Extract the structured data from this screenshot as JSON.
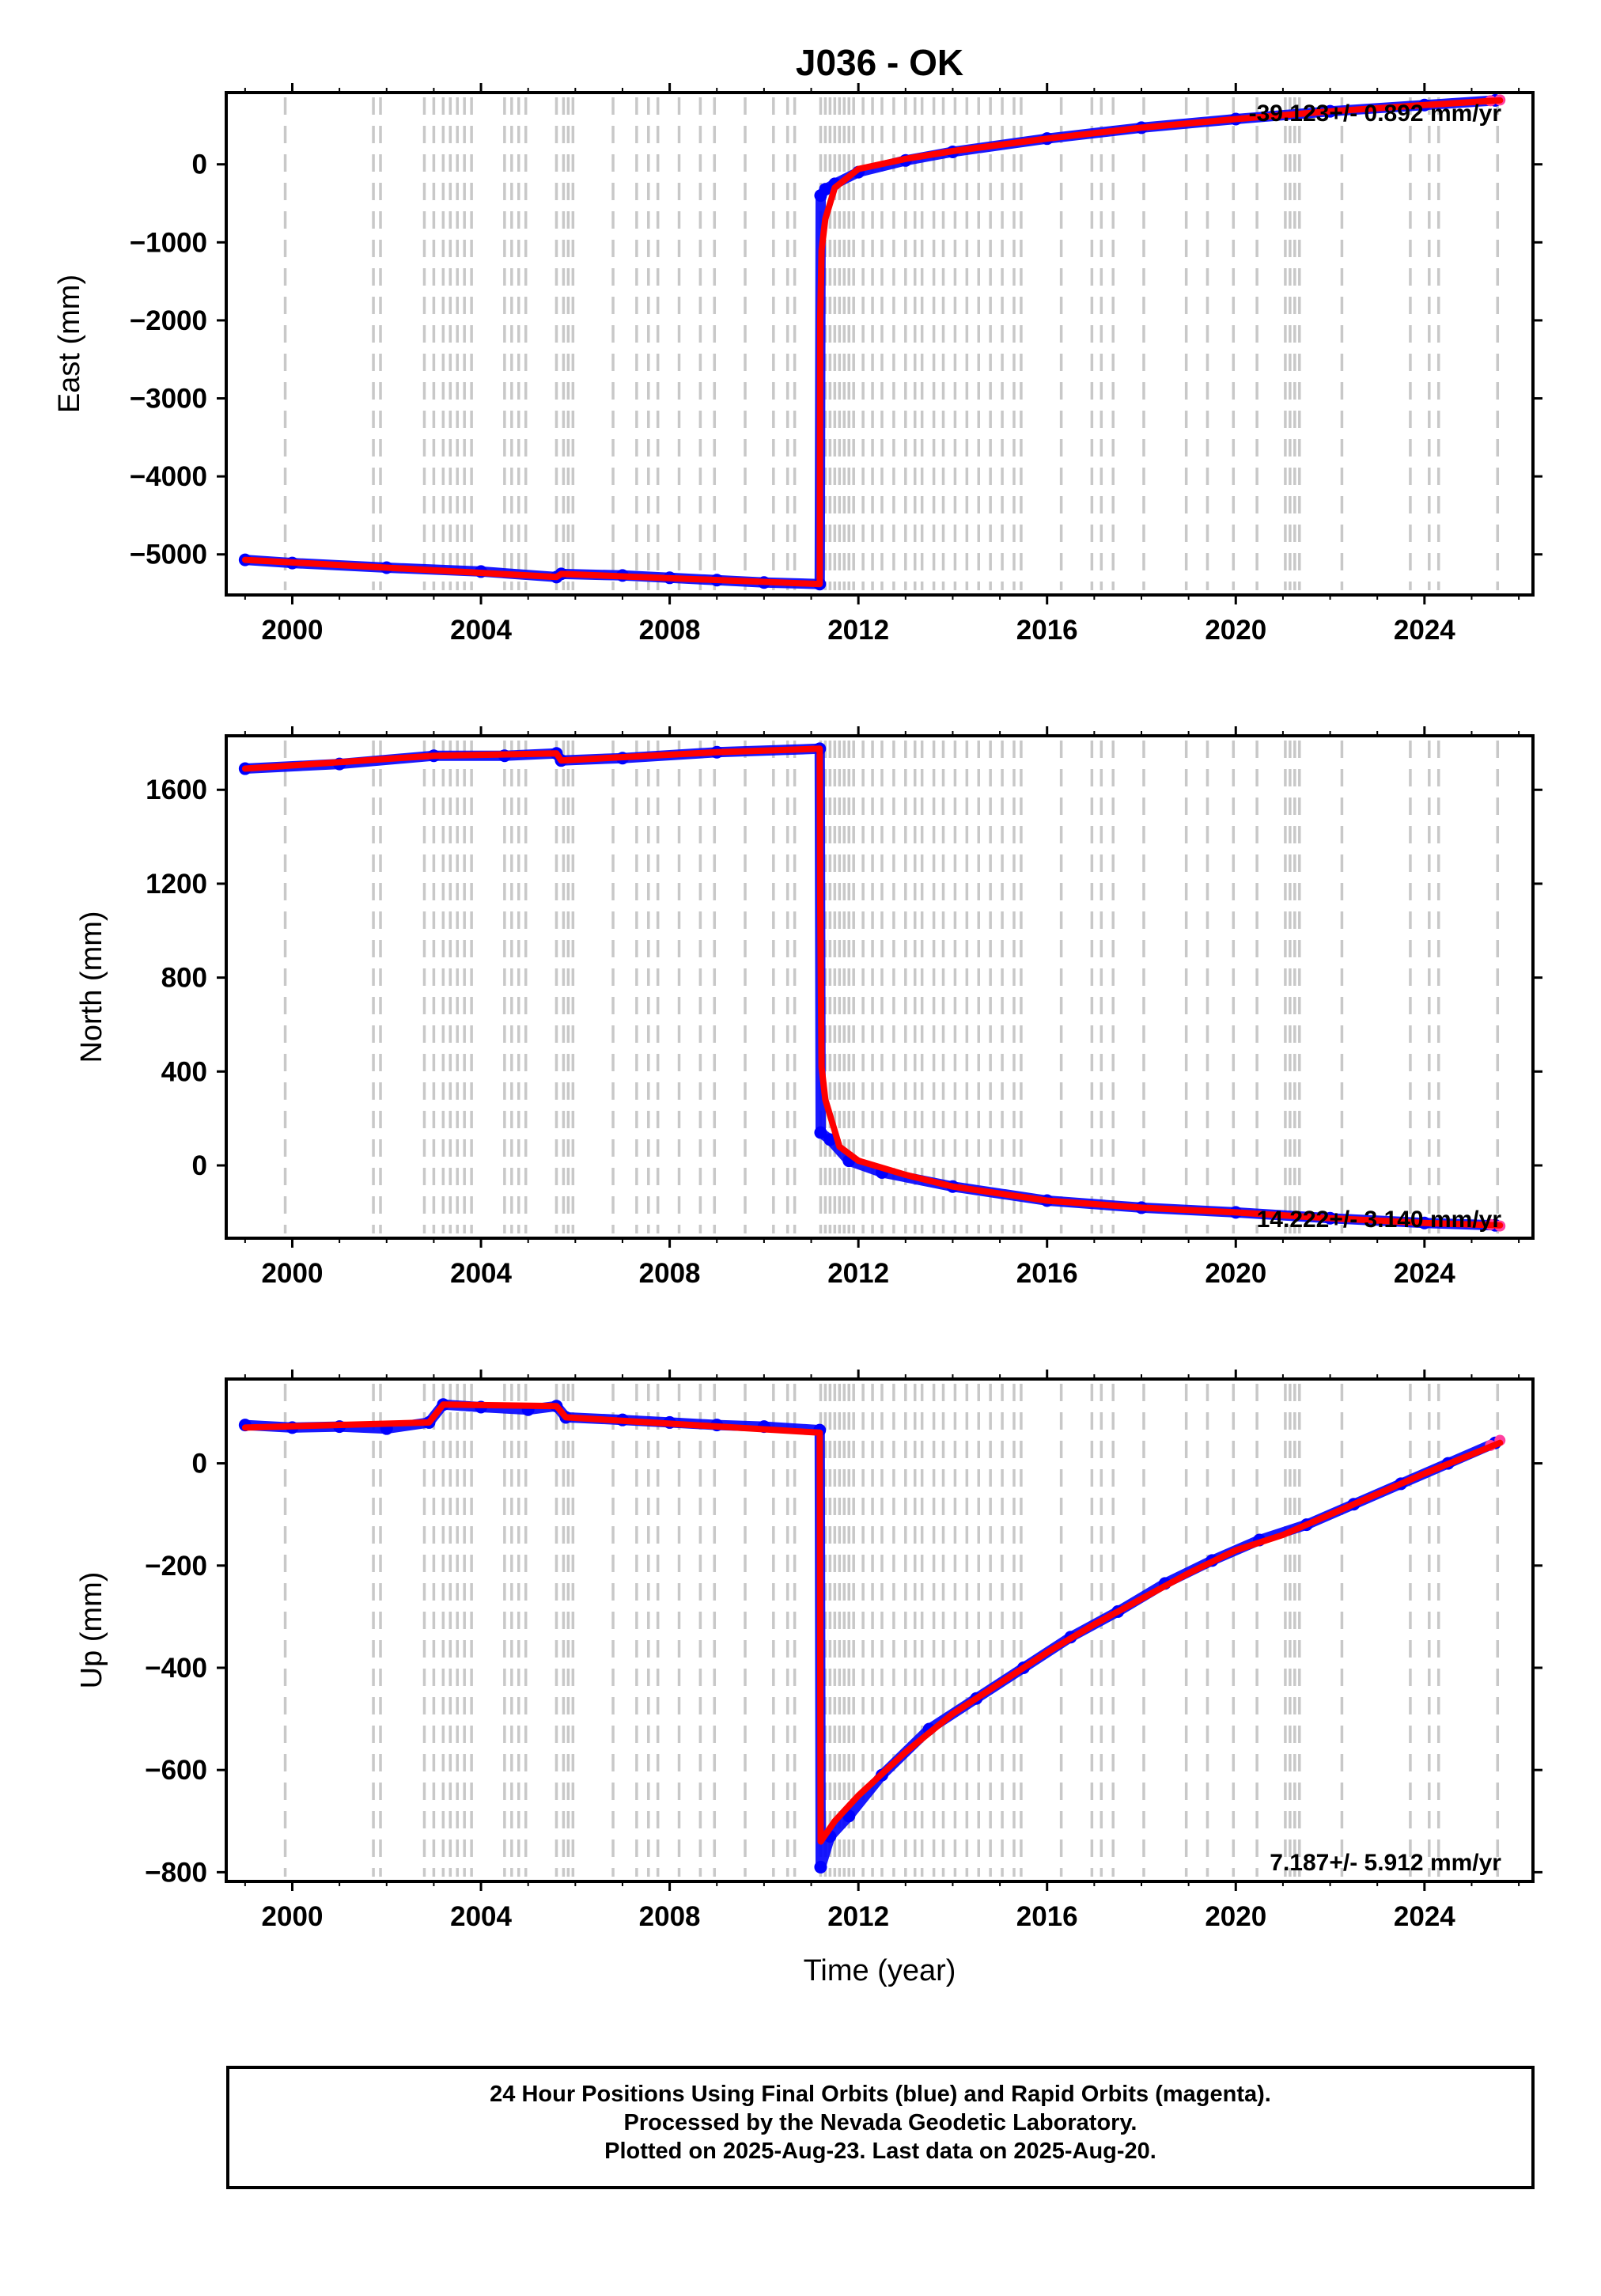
{
  "title": "J036 - OK",
  "xlabel": "Time (year)",
  "caption": [
    "24 Hour Positions Using Final Orbits (blue) and Rapid Orbits (magenta).",
    "Processed by the Nevada Geodetic Laboratory.",
    "Plotted on 2025-Aug-23. Last data on 2025-Aug-20."
  ],
  "colors": {
    "final_orbits": "#0000ff",
    "rapid_orbits": "#ff3fa0",
    "model": "#ff0000",
    "event_lines": "#c8c8c8"
  },
  "chart_data": [
    {
      "type": "scatter",
      "ylabel": "East (mm)",
      "xlim": [
        1998.6,
        2026.3
      ],
      "ylim": [
        -5520,
        920
      ],
      "xticks": [
        2000,
        2004,
        2008,
        2012,
        2016,
        2020,
        2024
      ],
      "yticks": [
        0,
        -1000,
        -2000,
        -3000,
        -4000,
        -5000
      ],
      "ytick_labels": [
        "0",
        "−1000",
        "−2000",
        "−3000",
        "−4000",
        "−5000"
      ],
      "rate_label": "-39.123+/- 0.892 mm/yr",
      "series": [
        {
          "name": "Final Orbits",
          "color": "#0000ff",
          "x": [
            1999.0,
            2000.0,
            2002.0,
            2004.0,
            2005.6,
            2005.7,
            2007.0,
            2008.0,
            2009.0,
            2010.0,
            2011.18,
            2011.2,
            2011.3,
            2011.5,
            2012.0,
            2013.0,
            2014.0,
            2016.0,
            2018.0,
            2020.0,
            2022.0,
            2024.0,
            2025.5
          ],
          "y": [
            -5070,
            -5110,
            -5170,
            -5220,
            -5290,
            -5250,
            -5270,
            -5300,
            -5330,
            -5360,
            -5380,
            -400,
            -320,
            -250,
            -100,
            50,
            160,
            330,
            470,
            580,
            680,
            760,
            820
          ]
        },
        {
          "name": "Rapid Orbits",
          "color": "#ff3fa0",
          "x": [
            2025.4,
            2025.6
          ],
          "y": [
            815,
            825
          ]
        },
        {
          "name": "Model",
          "color": "#ff0000",
          "x": [
            1999.0,
            2005.6,
            2005.7,
            2011.18,
            2011.19,
            2011.22,
            2011.3,
            2011.5,
            2012.0,
            2013.0,
            2014.0,
            2016.0,
            2018.0,
            2020.0,
            2022.0,
            2024.0,
            2025.6
          ],
          "y": [
            -5070,
            -5290,
            -5250,
            -5380,
            -2000,
            -1100,
            -700,
            -300,
            -60,
            70,
            170,
            330,
            470,
            580,
            680,
            760,
            820
          ]
        }
      ]
    },
    {
      "type": "scatter",
      "ylabel": "North (mm)",
      "xlim": [
        1998.6,
        2026.3
      ],
      "ylim": [
        -310,
        1830
      ],
      "xticks": [
        2000,
        2004,
        2008,
        2012,
        2016,
        2020,
        2024
      ],
      "yticks": [
        1600,
        1200,
        800,
        400,
        0
      ],
      "ytick_labels": [
        "1600",
        "1200",
        "800",
        "400",
        "0"
      ],
      "rate_label": "14.222+/- 3.140 mm/yr",
      "series": [
        {
          "name": "Final Orbits",
          "color": "#0000ff",
          "x": [
            1999.0,
            2001.0,
            2003.0,
            2004.5,
            2005.6,
            2005.7,
            2007.0,
            2009.0,
            2011.18,
            2011.2,
            2011.4,
            2011.8,
            2012.5,
            2014.0,
            2016.0,
            2018.0,
            2020.0,
            2022.0,
            2024.0,
            2025.5
          ],
          "y": [
            1690,
            1710,
            1745,
            1745,
            1755,
            1725,
            1735,
            1760,
            1775,
            140,
            110,
            20,
            -30,
            -90,
            -150,
            -180,
            -200,
            -225,
            -245,
            -255
          ]
        },
        {
          "name": "Rapid Orbits",
          "color": "#ff3fa0",
          "x": [
            2025.4,
            2025.6
          ],
          "y": [
            -252,
            -258
          ]
        },
        {
          "name": "Model",
          "color": "#ff0000",
          "x": [
            1999.0,
            2003.0,
            2005.6,
            2005.7,
            2009.0,
            2011.18,
            2011.19,
            2011.22,
            2011.3,
            2011.6,
            2012.0,
            2013.0,
            2014.0,
            2016.0,
            2018.0,
            2020.0,
            2022.0,
            2024.0,
            2025.6
          ],
          "y": [
            1690,
            1745,
            1755,
            1725,
            1760,
            1775,
            1150,
            420,
            280,
            80,
            20,
            -40,
            -90,
            -150,
            -180,
            -200,
            -225,
            -245,
            -255
          ]
        }
      ]
    },
    {
      "type": "scatter",
      "ylabel": "Up (mm)",
      "xlim": [
        1998.6,
        2026.3
      ],
      "ylim": [
        -818,
        165
      ],
      "xticks": [
        2000,
        2004,
        2008,
        2012,
        2016,
        2020,
        2024
      ],
      "yticks": [
        0,
        -200,
        -400,
        -600,
        -800
      ],
      "ytick_labels": [
        "0",
        "−200",
        "−400",
        "−600",
        "−800"
      ],
      "rate_label": "7.187+/- 5.912 mm/yr",
      "series": [
        {
          "name": "Final Orbits",
          "color": "#0000ff",
          "x": [
            1999.0,
            2000.0,
            2001.0,
            2002.0,
            2002.9,
            2003.2,
            2004.0,
            2005.0,
            2005.6,
            2005.8,
            2007.0,
            2008.0,
            2009.0,
            2010.0,
            2011.18,
            2011.2,
            2011.4,
            2011.8,
            2012.5,
            2013.5,
            2014.5,
            2015.5,
            2016.5,
            2017.5,
            2018.5,
            2019.5,
            2020.5,
            2021.5,
            2022.5,
            2023.5,
            2024.5,
            2025.5
          ],
          "y": [
            75,
            70,
            72,
            68,
            80,
            115,
            110,
            105,
            112,
            90,
            85,
            80,
            75,
            72,
            65,
            -790,
            -730,
            -690,
            -610,
            -520,
            -460,
            -400,
            -340,
            -290,
            -235,
            -190,
            -150,
            -120,
            -80,
            -40,
            0,
            40
          ]
        },
        {
          "name": "Rapid Orbits",
          "color": "#ff3fa0",
          "x": [
            2025.4,
            2025.6
          ],
          "y": [
            35,
            45
          ]
        },
        {
          "name": "Model",
          "color": "#ff0000",
          "x": [
            1999.0,
            2002.9,
            2003.2,
            2005.6,
            2005.8,
            2011.18,
            2011.2,
            2011.5,
            2012.0,
            2013.0,
            2014.0,
            2015.0,
            2016.0,
            2017.0,
            2018.0,
            2019.0,
            2020.0,
            2021.0,
            2022.0,
            2023.0,
            2024.0,
            2025.6
          ],
          "y": [
            70,
            80,
            115,
            112,
            90,
            60,
            -740,
            -700,
            -650,
            -565,
            -490,
            -430,
            -370,
            -315,
            -265,
            -215,
            -170,
            -140,
            -100,
            -60,
            -20,
            40
          ]
        }
      ]
    }
  ],
  "event_years": [
    1999.85,
    2001.72,
    2001.87,
    2002.8,
    2003.0,
    2003.2,
    2003.35,
    2003.5,
    2003.65,
    2003.8,
    2004.5,
    2004.65,
    2004.8,
    2004.95,
    2005.6,
    2005.75,
    2005.85,
    2005.95,
    2006.8,
    2007.3,
    2007.55,
    2007.75,
    2008.2,
    2008.65,
    2008.95,
    2009.6,
    2010.2,
    2010.5,
    2010.65,
    2011.2,
    2011.3,
    2011.4,
    2011.5,
    2011.6,
    2011.7,
    2011.8,
    2011.9,
    2012.1,
    2012.3,
    2012.5,
    2012.75,
    2013.0,
    2013.2,
    2013.35,
    2013.6,
    2013.8,
    2014.05,
    2014.3,
    2014.55,
    2014.8,
    2015.05,
    2015.3,
    2015.45,
    2016.3,
    2016.95,
    2017.15,
    2017.4,
    2018.05,
    2018.95,
    2019.4,
    2019.95,
    2020.45,
    2021.05,
    2021.15,
    2021.25,
    2021.35,
    2022.25,
    2023.7,
    2024.1,
    2024.3,
    2025.55
  ]
}
